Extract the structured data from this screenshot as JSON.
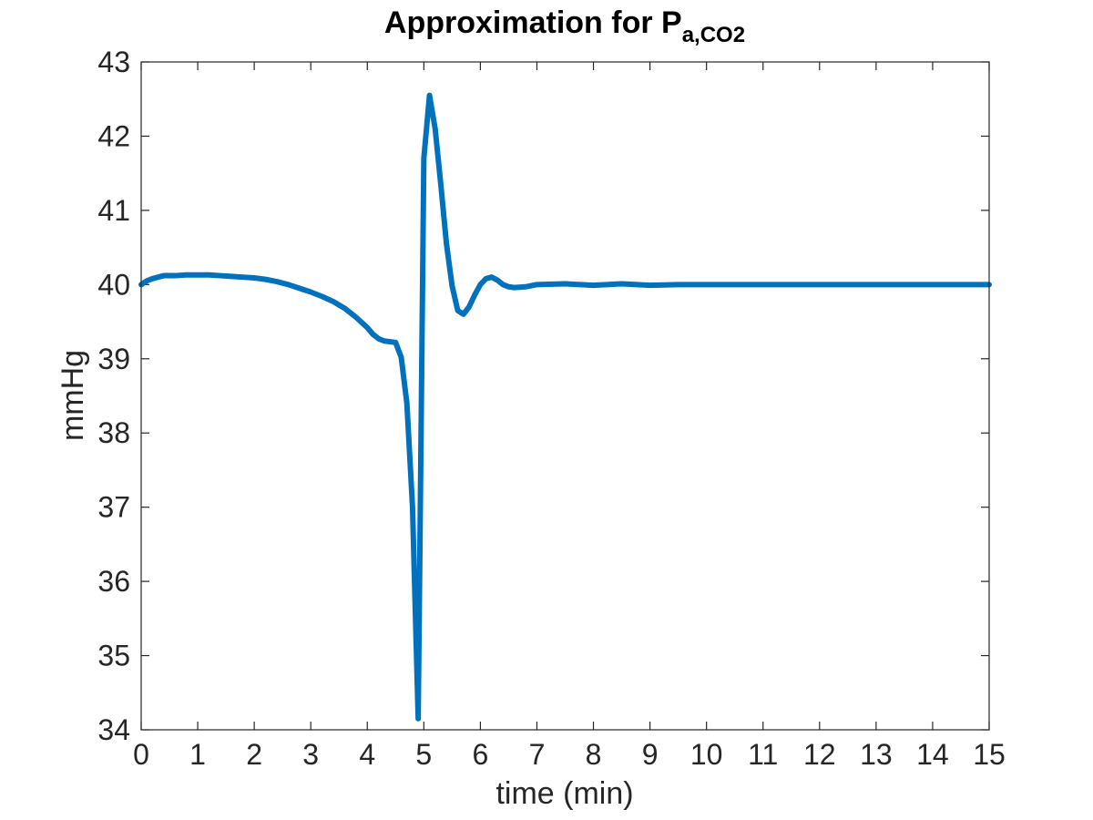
{
  "chart_data": {
    "type": "line",
    "title": "Approximation for P",
    "title_subscript": "a,CO2",
    "xlabel": "time (min)",
    "ylabel": "mmHg",
    "xlim": [
      0,
      15
    ],
    "ylim": [
      34,
      43
    ],
    "xticks": [
      0,
      1,
      2,
      3,
      4,
      5,
      6,
      7,
      8,
      9,
      10,
      11,
      12,
      13,
      14,
      15
    ],
    "yticks": [
      34,
      35,
      36,
      37,
      38,
      39,
      40,
      41,
      42,
      43
    ],
    "grid": false,
    "line_color": "#0072BD",
    "series": [
      {
        "x": [
          0,
          0.1,
          0.2,
          0.3,
          0.4,
          0.6,
          0.8,
          1.0,
          1.2,
          1.4,
          1.6,
          1.8,
          2.0,
          2.2,
          2.4,
          2.6,
          2.8,
          3.0,
          3.2,
          3.4,
          3.6,
          3.8,
          4.0,
          4.1,
          4.2,
          4.3,
          4.4,
          4.5,
          4.6,
          4.7,
          4.8,
          4.9,
          5.0,
          5.1,
          5.2,
          5.3,
          5.4,
          5.5,
          5.6,
          5.7,
          5.8,
          5.9,
          6.0,
          6.1,
          6.2,
          6.3,
          6.4,
          6.5,
          6.6,
          6.8,
          7.0,
          7.5,
          8.0,
          8.5,
          9.0,
          9.5,
          10.0,
          11.0,
          12.0,
          13.0,
          14.0,
          15.0
        ],
        "y": [
          40.0,
          40.05,
          40.08,
          40.1,
          40.12,
          40.12,
          40.13,
          40.13,
          40.13,
          40.12,
          40.11,
          40.1,
          40.09,
          40.07,
          40.04,
          40.0,
          39.95,
          39.9,
          39.84,
          39.77,
          39.68,
          39.56,
          39.42,
          39.33,
          39.27,
          39.24,
          39.23,
          39.22,
          39.02,
          38.4,
          37.0,
          34.15,
          41.7,
          42.55,
          42.1,
          41.35,
          40.55,
          39.98,
          39.65,
          39.6,
          39.7,
          39.86,
          40.0,
          40.08,
          40.1,
          40.06,
          40.0,
          39.97,
          39.96,
          39.97,
          40.0,
          40.01,
          39.99,
          40.01,
          39.99,
          40.0,
          40.0,
          40.0,
          40.0,
          40.0,
          40.0,
          40.0
        ]
      }
    ]
  }
}
